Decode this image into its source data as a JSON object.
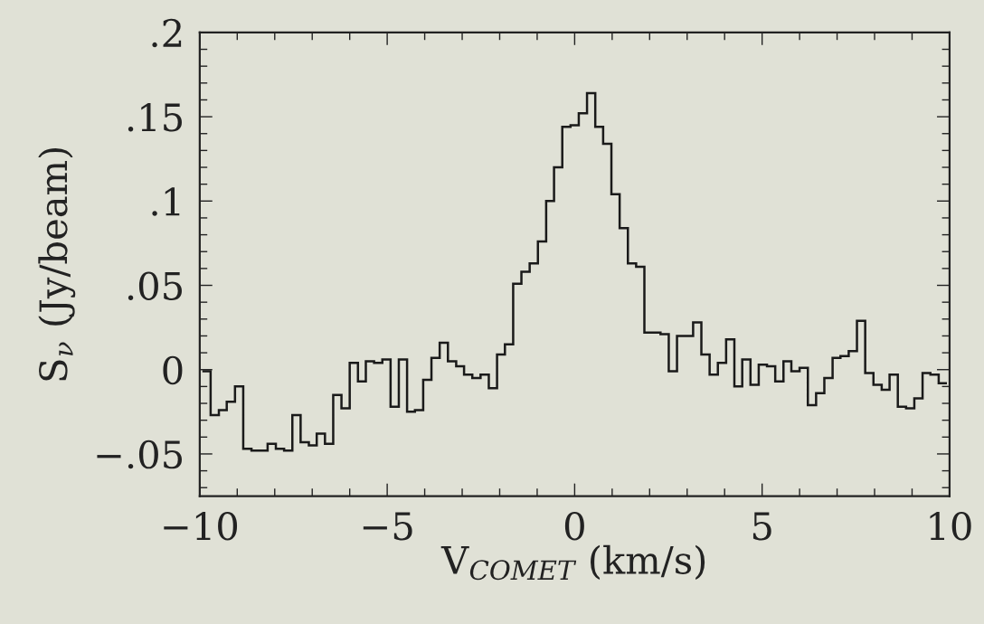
{
  "chart_data": {
    "type": "histogram",
    "xlabel": "V$_{COMET}$ (km/s)",
    "ylabel": "S$_{ν}$ (Jy/beam)",
    "color": "#1a1a1a",
    "bins": [
      -9.93,
      -9.71,
      -9.49,
      -9.28,
      -9.06,
      -8.84,
      -8.62,
      -8.4,
      -8.19,
      -7.97,
      -7.75,
      -7.53,
      -7.31,
      -7.09,
      -6.88,
      -6.66,
      -6.44,
      -6.22,
      -6.0,
      -5.78,
      -5.57,
      -5.35,
      -5.13,
      -4.91,
      -4.69,
      -4.47,
      -4.26,
      -4.04,
      -3.82,
      -3.6,
      -3.38,
      -3.16,
      -2.95,
      -2.73,
      -2.51,
      -2.29,
      -2.07,
      -1.86,
      -1.64,
      -1.42,
      -1.2,
      -0.98,
      -0.76,
      -0.55,
      -0.33,
      -0.11,
      0.11,
      0.33,
      0.55,
      0.76,
      0.98,
      1.2,
      1.42,
      1.64,
      1.86,
      2.07,
      2.29,
      2.51,
      2.73,
      2.95,
      3.16,
      3.38,
      3.6,
      3.82,
      4.04,
      4.26,
      4.47,
      4.69,
      4.91,
      5.13,
      5.35,
      5.57,
      5.78,
      6.0,
      6.22,
      6.44,
      6.66,
      6.88,
      7.09,
      7.31,
      7.53,
      7.75,
      7.97,
      8.19,
      8.4,
      8.62,
      8.84,
      9.06,
      9.28,
      9.49,
      9.71,
      9.93
    ],
    "values": [
      -0.001,
      -0.027,
      -0.024,
      -0.019,
      -0.01,
      -0.047,
      -0.048,
      -0.048,
      -0.044,
      -0.047,
      -0.048,
      -0.027,
      -0.043,
      -0.045,
      -0.038,
      -0.044,
      -0.015,
      -0.023,
      0.004,
      -0.007,
      0.005,
      0.004,
      0.006,
      -0.022,
      0.006,
      -0.025,
      -0.024,
      -0.006,
      0.007,
      0.016,
      0.005,
      0.002,
      -0.003,
      -0.005,
      -0.003,
      -0.011,
      0.009,
      0.015,
      0.051,
      0.058,
      0.063,
      0.076,
      0.1,
      0.12,
      0.144,
      0.145,
      0.152,
      0.164,
      0.144,
      0.134,
      0.104,
      0.084,
      0.063,
      0.061,
      0.022,
      0.022,
      0.021,
      -0.001,
      0.02,
      0.02,
      0.028,
      0.009,
      -0.003,
      0.004,
      0.018,
      -0.01,
      0.006,
      -0.009,
      0.003,
      0.002,
      -0.007,
      0.005,
      -0.001,
      0.001,
      -0.021,
      -0.014,
      -0.005,
      0.007,
      0.008,
      0.011,
      0.029,
      -0.002,
      -0.009,
      -0.012,
      -0.003,
      -0.022,
      -0.023,
      -0.017,
      -0.002,
      -0.003,
      -0.008
    ],
    "xlim": [
      -10,
      10
    ],
    "ylim": [
      -0.075,
      0.2
    ],
    "xticks": [
      {
        "value": -10,
        "label": "−10"
      },
      {
        "value": -9,
        "label": null
      },
      {
        "value": -8,
        "label": null
      },
      {
        "value": -7,
        "label": null
      },
      {
        "value": -6,
        "label": null
      },
      {
        "value": -5,
        "label": "−5"
      },
      {
        "value": -4,
        "label": null
      },
      {
        "value": -3,
        "label": null
      },
      {
        "value": -2,
        "label": null
      },
      {
        "value": -1,
        "label": null
      },
      0,
      {
        "value": 1,
        "label": null
      },
      {
        "value": 2,
        "label": null
      },
      {
        "value": 3,
        "label": null
      },
      {
        "value": 4,
        "label": null
      },
      5,
      {
        "value": 6,
        "label": null
      },
      {
        "value": 7,
        "label": null
      },
      {
        "value": 8,
        "label": null
      },
      {
        "value": 9,
        "label": null
      },
      10
    ],
    "yticks": [
      {
        "value": -0.07,
        "label": null
      },
      {
        "value": -0.06,
        "label": null
      },
      {
        "value": -0.05,
        "label": "−.05"
      },
      {
        "value": -0.04,
        "label": null
      },
      {
        "value": -0.03,
        "label": null
      },
      {
        "value": -0.02,
        "label": null
      },
      {
        "value": -0.01,
        "label": null
      },
      0,
      {
        "value": 0.01,
        "label": null
      },
      {
        "value": 0.02,
        "label": null
      },
      {
        "value": 0.03,
        "label": null
      },
      {
        "value": 0.04,
        "label": null
      },
      {
        "value": 0.05,
        "label": ".05"
      },
      {
        "value": 0.06,
        "label": null
      },
      {
        "value": 0.07,
        "label": null
      },
      {
        "value": 0.08,
        "label": null
      },
      {
        "value": 0.09,
        "label": null
      },
      {
        "value": 0.1,
        "label": ".1"
      },
      {
        "value": 0.11,
        "label": null
      },
      {
        "value": 0.12,
        "label": null
      },
      {
        "value": 0.13,
        "label": null
      },
      {
        "value": 0.14,
        "label": null
      },
      {
        "value": 0.15,
        "label": ".15"
      },
      {
        "value": 0.16,
        "label": null
      },
      {
        "value": 0.17,
        "label": null
      },
      {
        "value": 0.18,
        "label": null
      },
      {
        "value": 0.19,
        "label": null
      },
      {
        "value": 0.2,
        "label": ".2"
      }
    ],
    "grid": false
  }
}
